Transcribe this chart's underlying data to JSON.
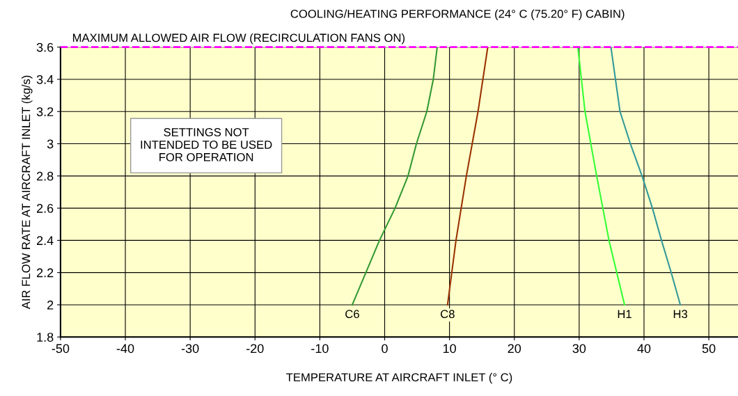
{
  "chart_data": {
    "type": "line",
    "title": "COOLING/HEATING PERFORMANCE (24° C (75.20° F) CABIN)",
    "xlabel": "TEMPERATURE AT AIRCRAFT INLET (° C)",
    "ylabel": "AIR FLOW RATE AT AIRCRAFT INLET (kg/s)",
    "series": [
      {
        "name": "C6",
        "color": "#339933",
        "x": [
          -5,
          -0.8,
          1.6,
          3.6,
          4.9,
          6.5,
          7.5,
          8.1
        ],
        "values": [
          2.0,
          2.4,
          2.6,
          2.8,
          3.0,
          3.2,
          3.4,
          3.6
        ]
      },
      {
        "name": "C8",
        "color": "#993300",
        "x": [
          9.7,
          11.0,
          12.6,
          14.4,
          15.9
        ],
        "values": [
          2.0,
          2.4,
          2.8,
          3.2,
          3.6
        ]
      },
      {
        "name": "H1",
        "color": "#33ff33",
        "x": [
          37.0,
          34.6,
          32.7,
          30.9,
          29.8
        ],
        "values": [
          2.0,
          2.4,
          2.8,
          3.2,
          3.6
        ]
      },
      {
        "name": "H3",
        "color": "#339999",
        "x": [
          45.6,
          44.2,
          42.7,
          41.3,
          39.7,
          37.9,
          36.3,
          34.9
        ],
        "values": [
          2.0,
          2.2,
          2.4,
          2.6,
          2.8,
          3.0,
          3.2,
          3.6
        ]
      }
    ],
    "ref_lines": [
      {
        "axis": "y",
        "value": 3.6,
        "label": "MAXIMUM ALLOWED AIR FLOW (RECIRCULATION FANS ON)",
        "color": "#ff00ff",
        "line_style": "dashed"
      }
    ],
    "annotations": [
      "SETTINGS NOT\nINTENDED TO BE USED\nFOR OPERATION"
    ],
    "xlim": [
      -50,
      54.5
    ],
    "xticks": [
      -50,
      -40,
      -30,
      -20,
      -10,
      0,
      10,
      20,
      30,
      40,
      50
    ],
    "ylim": [
      1.8,
      3.6
    ],
    "yticks": [
      1.8,
      2,
      2.2,
      2.4,
      2.6,
      2.8,
      3,
      3.2,
      3.4,
      3.6
    ],
    "grid": true,
    "marker": "none",
    "line_style": "solid"
  }
}
